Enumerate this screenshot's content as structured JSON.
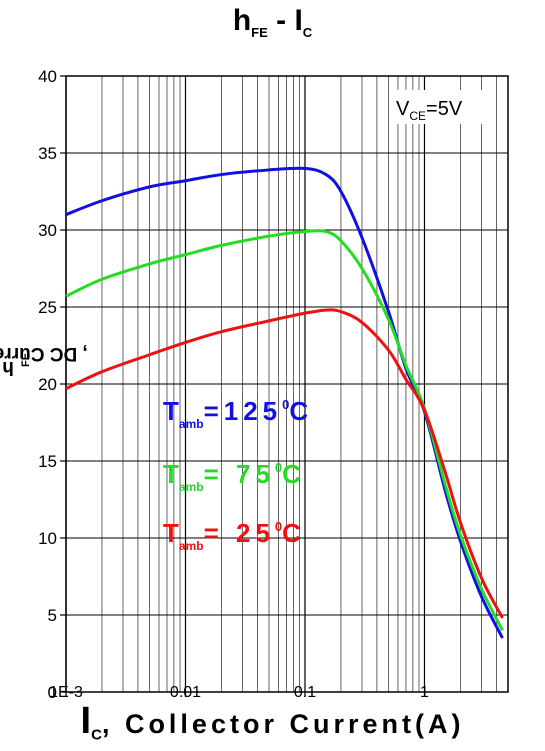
{
  "chart_data": {
    "type": "line",
    "title": {
      "main": "h",
      "sub1": "FE",
      "dash": " - I",
      "sub2": "C"
    },
    "xlabel": {
      "main": "I",
      "sub": "C",
      "text": ", Collector Current(A)"
    },
    "ylabel": {
      "main": "h",
      "sub": "FE",
      "text": ", DC Current Gain"
    },
    "x_scale": "log",
    "xlim": [
      0.001,
      5
    ],
    "ylim": [
      0,
      40
    ],
    "x_tick_labels": [
      "1E-3",
      "0.01",
      "0.1",
      "1"
    ],
    "x_ticks": [
      0.001,
      0.01,
      0.1,
      1
    ],
    "y_ticks": [
      0,
      5,
      10,
      15,
      20,
      25,
      30,
      35,
      40
    ],
    "grid": true,
    "condition": {
      "main": "V",
      "sub": "CE",
      "text": "=5V"
    },
    "series": [
      {
        "name": "T_amb = 125 °C",
        "color": "#1010e0",
        "x": [
          0.001,
          0.002,
          0.005,
          0.01,
          0.02,
          0.05,
          0.1,
          0.15,
          0.2,
          0.3,
          0.5,
          0.7,
          1,
          1.5,
          2,
          3,
          4.5
        ],
        "y": [
          31.0,
          31.9,
          32.8,
          33.2,
          33.6,
          33.9,
          34.0,
          33.6,
          32.5,
          29.5,
          24.7,
          21.0,
          18.2,
          13.0,
          9.8,
          6.2,
          3.5
        ]
      },
      {
        "name": "T_amb = 75 °C",
        "color": "#22dd22",
        "x": [
          0.001,
          0.002,
          0.005,
          0.01,
          0.02,
          0.05,
          0.1,
          0.15,
          0.2,
          0.3,
          0.5,
          0.7,
          1,
          1.5,
          2,
          3,
          4.5
        ],
        "y": [
          25.7,
          26.8,
          27.8,
          28.4,
          29.0,
          29.6,
          29.9,
          29.9,
          29.3,
          27.5,
          24.2,
          21.2,
          18.4,
          13.4,
          10.2,
          6.7,
          4.0
        ]
      },
      {
        "name": "T_amb = 25 °C",
        "color": "#ee1111",
        "x": [
          0.001,
          0.002,
          0.005,
          0.01,
          0.02,
          0.05,
          0.1,
          0.15,
          0.2,
          0.3,
          0.5,
          0.7,
          1,
          1.5,
          2,
          3,
          4.5
        ],
        "y": [
          19.7,
          20.8,
          21.9,
          22.7,
          23.4,
          24.1,
          24.6,
          24.8,
          24.7,
          24.0,
          22.2,
          20.3,
          18.3,
          14.2,
          11.0,
          7.4,
          4.8
        ]
      }
    ],
    "legend": [
      {
        "main": "T",
        "sub": "amb",
        "text": "=125",
        "deg": "0",
        "unit": "C",
        "color": "#1010e0"
      },
      {
        "main": "T",
        "sub": "amb",
        "text": "= 75",
        "deg": "0",
        "unit": "C",
        "color": "#22dd22"
      },
      {
        "main": "T",
        "sub": "amb",
        "text": "= 25",
        "deg": "0",
        "unit": "C",
        "color": "#ee1111"
      }
    ]
  }
}
